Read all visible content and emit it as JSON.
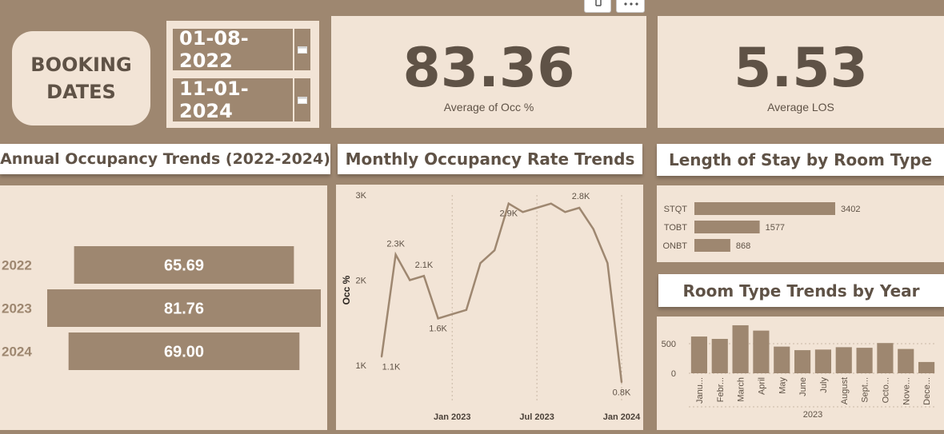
{
  "toolbar": {
    "pin_icon": "pin-icon",
    "more_icon": "more-options-icon"
  },
  "booking": {
    "title_line1": "BOOKING",
    "title_line2": "DATES",
    "start_date": "01-08-2022",
    "end_date": "11-01-2024",
    "calendar_icon": "calendar-icon"
  },
  "kpis": {
    "occ_value": "83.36",
    "occ_label": "Average of Occ %",
    "los_value": "5.53",
    "los_label": "Average LOS"
  },
  "colors": {
    "background": "#9e8770",
    "panel": "#f2e4d6",
    "bar": "#9e8770",
    "text": "#5f5246"
  },
  "titles": {
    "annual": "Annual Occupancy Trends (2022-2024)",
    "monthly": "Monthly Occupancy Rate Trends",
    "los": "Length of Stay by Room Type",
    "room_trends": "Room Type Trends by Year"
  },
  "chart_data": [
    {
      "type": "bar",
      "orientation": "horizontal",
      "categories": [
        "2022",
        "2023",
        "2024"
      ],
      "values": [
        65.69,
        81.76,
        69.0
      ],
      "labels": [
        "65.69",
        "81.76",
        "69.00"
      ],
      "title": "Annual Occupancy Trends (2022-2024)"
    },
    {
      "type": "line",
      "title": "Monthly Occupancy Rate Trends",
      "ylabel": "Occ %",
      "yticks": [
        "1K",
        "2K",
        "3K"
      ],
      "xticks": [
        "Jan 2023",
        "Jul 2023",
        "Jan 2024"
      ],
      "ylim": [
        1000,
        3000
      ],
      "x": [
        "2022-08",
        "2022-09",
        "2022-10",
        "2022-11",
        "2022-12",
        "2023-01",
        "2023-02",
        "2023-03",
        "2023-04",
        "2023-05",
        "2023-06",
        "2023-07",
        "2023-08",
        "2023-09",
        "2023-10",
        "2023-11",
        "2023-12",
        "2024-01"
      ],
      "values": [
        1100,
        2300,
        2000,
        2050,
        1550,
        1600,
        1650,
        2200,
        2350,
        2900,
        2800,
        2850,
        2900,
        2800,
        2850,
        2600,
        2200,
        800
      ],
      "point_labels": [
        {
          "index": 0,
          "text": "1.1K"
        },
        {
          "index": 1,
          "text": "2.3K"
        },
        {
          "index": 3,
          "text": "2.1K"
        },
        {
          "index": 4,
          "text": "1.6K"
        },
        {
          "index": 9,
          "text": "2.9K"
        },
        {
          "index": 14,
          "text": "2.8K"
        },
        {
          "index": 17,
          "text": "0.8K"
        }
      ]
    },
    {
      "type": "bar",
      "orientation": "horizontal",
      "title": "Length of Stay by Room Type",
      "categories": [
        "STQT",
        "TOBT",
        "ONBT"
      ],
      "values": [
        3402,
        1577,
        868
      ],
      "labels": [
        "3402",
        "1577",
        "868"
      ]
    },
    {
      "type": "bar",
      "title": "Room Type Trends by Year",
      "categories": [
        "Janu...",
        "Febr...",
        "March",
        "April",
        "May",
        "June",
        "July",
        "August",
        "Sept...",
        "Octo...",
        "Nove...",
        "Dece..."
      ],
      "values": [
        620,
        580,
        810,
        720,
        450,
        390,
        400,
        440,
        430,
        510,
        410,
        190
      ],
      "yticks": [
        "0",
        "500"
      ],
      "ylim": [
        0,
        850
      ],
      "xgroup_label": "2023"
    }
  ]
}
